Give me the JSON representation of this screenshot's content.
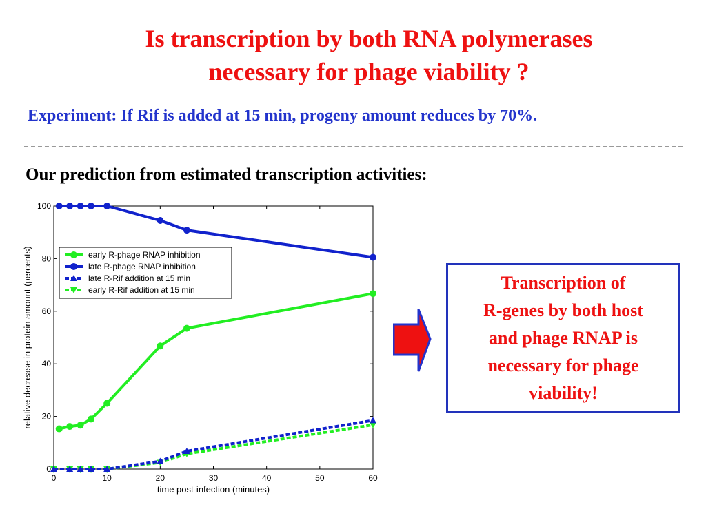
{
  "title": {
    "line1": "Is transcription by both RNA polymerases",
    "line2": "necessary for phage viability ?"
  },
  "subtitle": "Experiment: If Rif is added at 15 min, progeny amount reduces by 70%.",
  "prediction_heading": "Our prediction from estimated transcription activities:",
  "conclusion": {
    "lines": [
      "Transcription of",
      "R-genes by both host",
      "and phage RNAP is",
      "necessary for phage",
      "viability!"
    ]
  },
  "colors": {
    "title": "#ee1111",
    "subtitle": "#2233cc",
    "arrow_fill": "#ee1111",
    "arrow_border": "#2233cc",
    "box_border": "#2233bb"
  },
  "icons": {
    "arrow": "right-arrow-icon"
  },
  "chart_data": {
    "type": "line",
    "xlabel": "time post-infection (minutes)",
    "ylabel": "relative decrease in protein amount (percents)",
    "xlim": [
      0,
      60
    ],
    "ylim": [
      0,
      100
    ],
    "xticks": [
      0,
      10,
      20,
      30,
      40,
      50,
      60
    ],
    "yticks": [
      0,
      20,
      40,
      60,
      80,
      100
    ],
    "legend_position": "upper-left",
    "series": [
      {
        "name": "early R-phage RNAP inhibition",
        "color": "#22ee22",
        "style": "solid",
        "marker": "circle",
        "x": [
          1,
          3,
          5,
          7,
          10,
          20,
          25,
          60
        ],
        "y": [
          15.3,
          16.2,
          16.7,
          19,
          25,
          46.8,
          53.5,
          66.7
        ]
      },
      {
        "name": "late R-phage RNAP inhibition",
        "color": "#1122cc",
        "style": "solid",
        "marker": "circle",
        "x": [
          1,
          3,
          5,
          7,
          10,
          20,
          25,
          60
        ],
        "y": [
          100,
          100,
          100,
          100,
          100,
          94.5,
          90.8,
          80.5
        ]
      },
      {
        "name": "late R-Rif addition at 15 min",
        "color": "#1122cc",
        "style": "dashed",
        "marker": "triangle",
        "x": [
          0,
          3,
          5,
          7,
          10,
          20,
          25,
          60
        ],
        "y": [
          0,
          0,
          0,
          0,
          0,
          3,
          6.8,
          18.5
        ]
      },
      {
        "name": "early R-Rif addition at 15 min",
        "color": "#22ee22",
        "style": "dashed",
        "marker": "triangle-down",
        "x": [
          0,
          3,
          5,
          7,
          10,
          20,
          25,
          60
        ],
        "y": [
          0,
          0,
          0,
          0,
          0,
          2.5,
          5.8,
          16.8
        ]
      }
    ]
  }
}
